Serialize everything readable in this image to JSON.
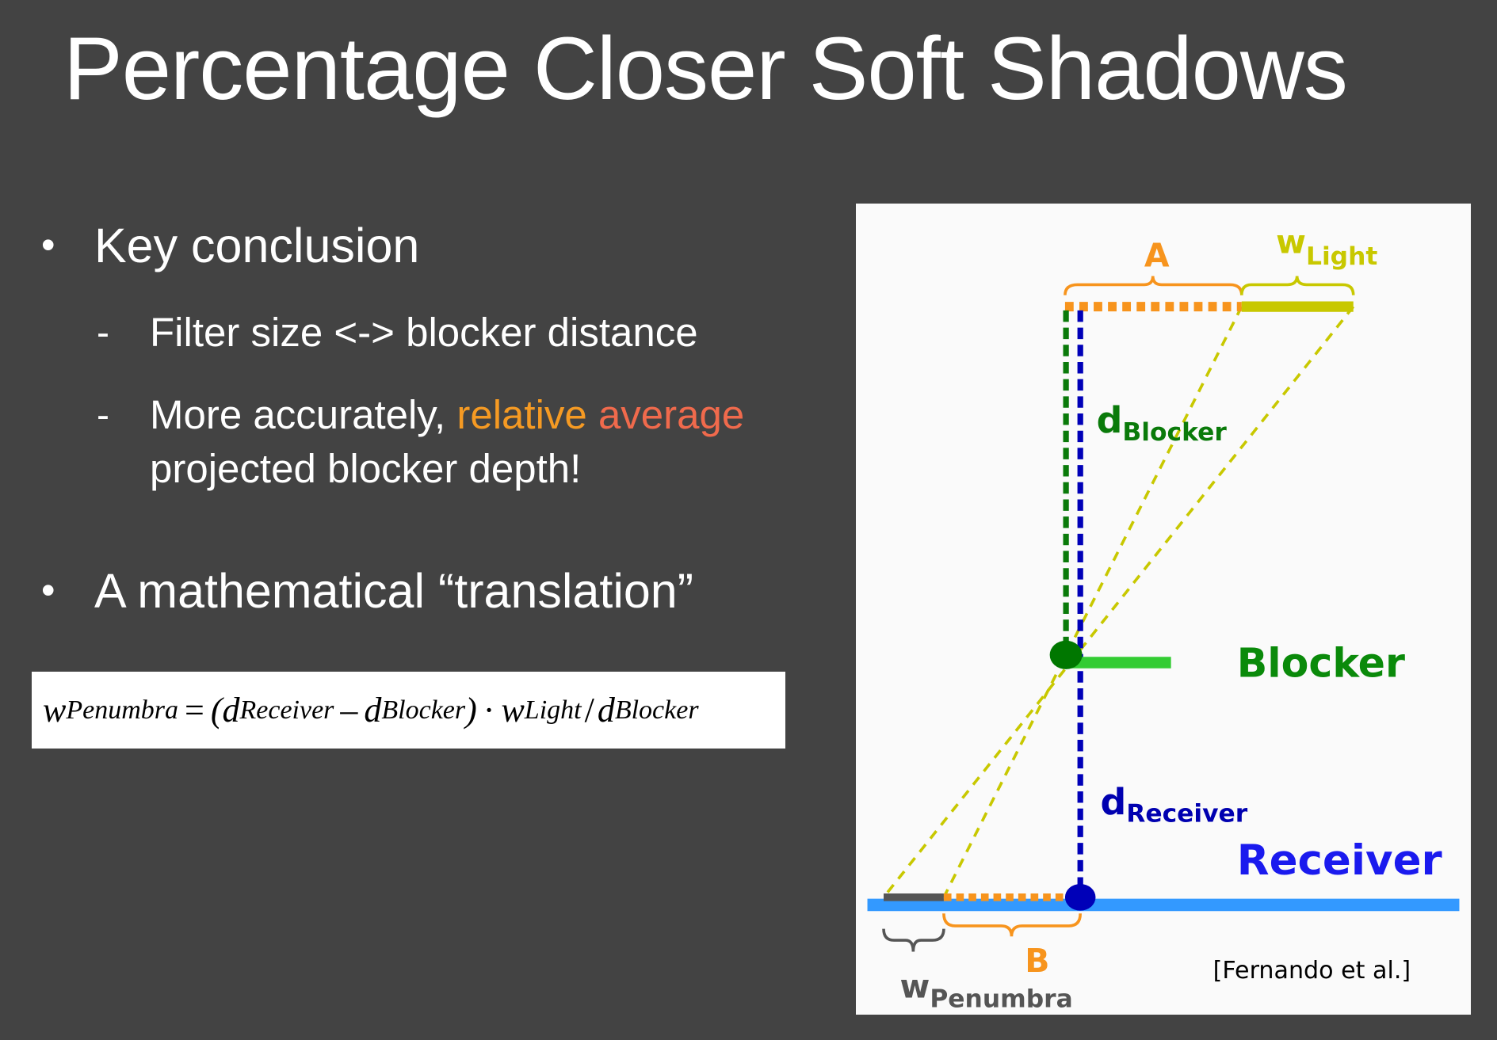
{
  "title": "Percentage Closer Soft Shadows",
  "bullets": [
    {
      "text": "Key conclusion",
      "subitems": [
        {
          "text": "Filter size <-> blocker distance"
        },
        {
          "prefix": "More accurately, ",
          "highlight1": "relative",
          "highlight2": "average",
          "line2": "projected blocker depth!"
        }
      ]
    },
    {
      "text": "A mathematical “translation”"
    }
  ],
  "formula": {
    "w": "w",
    "w_sub": "Penumbra",
    "eq": "=",
    "lparen": "(d",
    "d_receiver_sub": "Receiver",
    "minus": "–",
    "d": "d",
    "d_blocker_sub": "Blocker",
    "rparen": ")",
    "dot": "·",
    "w2": "w",
    "light_sub": "Light",
    "slash": "/",
    "d2": "d",
    "d_blocker_sub2": "Blocker"
  },
  "diagram": {
    "label_a": "A",
    "label_b": "B",
    "w_light": {
      "main": "w",
      "sub": "Light"
    },
    "d_blocker": {
      "main": "d",
      "sub": "Blocker"
    },
    "d_receiver": {
      "main": "d",
      "sub": "Receiver"
    },
    "w_penumbra": {
      "main": "w",
      "sub": "Penumbra"
    },
    "blocker": "Blocker",
    "receiver": "Receiver",
    "citation": "[Fernando et al.]",
    "colors": {
      "orange": "#f7941d",
      "yellow": "#c8c800",
      "green": "#0a8a0a",
      "blue": "#0000b8",
      "receiver_line": "#3399ff",
      "gray": "#555555"
    }
  },
  "colors": {
    "background": "#434343",
    "highlight_orange": "#f59a23",
    "highlight_red": "#f06a4c"
  }
}
